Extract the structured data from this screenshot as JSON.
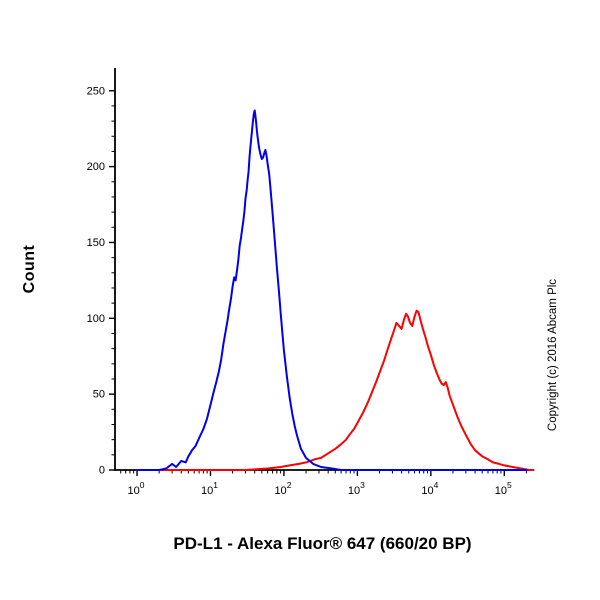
{
  "figure": {
    "title": "PD-L1 - Alexa Fluor® 647 (660/20 BP)",
    "ylabel": "Count",
    "copyright": "Copyright (c) 2016 Abcam Plc"
  },
  "chart_data": {
    "type": "line",
    "subtype": "flow-cytometry-histogram",
    "title": "PD-L1 - Alexa Fluor® 647 (660/20 BP)",
    "xlabel": "PD-L1 - Alexa Fluor® 647 (660/20 BP)",
    "ylabel": "Count",
    "xscale": "log",
    "xlog_range": [
      -0.3,
      5.35
    ],
    "xtick_exponents": [
      0,
      1,
      2,
      3,
      4,
      5
    ],
    "ylim": [
      0,
      265
    ],
    "yticks": [
      0,
      50,
      100,
      150,
      200,
      250
    ],
    "grid": false,
    "legend": "none",
    "axis_color": "#000000",
    "background_color": "#ffffff",
    "series": [
      {
        "name": "series-red-pd-l1-stained",
        "color": "#ff0000",
        "peak": {
          "x": 6400,
          "y": 105
        },
        "points": [
          [
            1,
            0
          ],
          [
            30,
            0
          ],
          [
            60,
            1
          ],
          [
            90,
            2
          ],
          [
            120,
            3
          ],
          [
            160,
            4
          ],
          [
            200,
            5
          ],
          [
            260,
            7
          ],
          [
            320,
            8
          ],
          [
            400,
            11
          ],
          [
            500,
            14
          ],
          [
            600,
            17
          ],
          [
            700,
            20
          ],
          [
            800,
            24
          ],
          [
            900,
            27
          ],
          [
            1000,
            31
          ],
          [
            1200,
            38
          ],
          [
            1400,
            45
          ],
          [
            1600,
            52
          ],
          [
            1800,
            58
          ],
          [
            2000,
            64
          ],
          [
            2300,
            72
          ],
          [
            2600,
            80
          ],
          [
            2900,
            87
          ],
          [
            3100,
            91
          ],
          [
            3400,
            97
          ],
          [
            3700,
            95
          ],
          [
            4000,
            93
          ],
          [
            4300,
            99
          ],
          [
            4600,
            103
          ],
          [
            4900,
            101
          ],
          [
            5200,
            97
          ],
          [
            5600,
            95
          ],
          [
            6000,
            101
          ],
          [
            6400,
            105
          ],
          [
            6800,
            104
          ],
          [
            7200,
            99
          ],
          [
            7800,
            93
          ],
          [
            8500,
            87
          ],
          [
            9200,
            81
          ],
          [
            10000,
            76
          ],
          [
            11000,
            69
          ],
          [
            12000,
            64
          ],
          [
            13000,
            60
          ],
          [
            14000,
            57
          ],
          [
            15000,
            56
          ],
          [
            16000,
            58
          ],
          [
            17000,
            54
          ],
          [
            18000,
            49
          ],
          [
            20000,
            43
          ],
          [
            23000,
            35
          ],
          [
            26000,
            29
          ],
          [
            30000,
            23
          ],
          [
            35000,
            17
          ],
          [
            40000,
            13
          ],
          [
            50000,
            9
          ],
          [
            60000,
            7
          ],
          [
            70000,
            5
          ],
          [
            85000,
            4
          ],
          [
            100000,
            3
          ],
          [
            130000,
            2
          ],
          [
            170000,
            1
          ],
          [
            220000,
            0
          ],
          [
            250000,
            0
          ]
        ]
      },
      {
        "name": "series-blue-control",
        "color": "#0000ee",
        "peak": {
          "x": 40,
          "y": 237
        },
        "points": [
          [
            1,
            0
          ],
          [
            2,
            0
          ],
          [
            2.5,
            1
          ],
          [
            3,
            4
          ],
          [
            3.4,
            2
          ],
          [
            4,
            6
          ],
          [
            4.6,
            5
          ],
          [
            5,
            9
          ],
          [
            5.6,
            13
          ],
          [
            6.3,
            16
          ],
          [
            7,
            21
          ],
          [
            8,
            27
          ],
          [
            9,
            34
          ],
          [
            10,
            43
          ],
          [
            11,
            51
          ],
          [
            12,
            58
          ],
          [
            13,
            65
          ],
          [
            14,
            73
          ],
          [
            15,
            83
          ],
          [
            16,
            91
          ],
          [
            17,
            98
          ],
          [
            18,
            106
          ],
          [
            19,
            113
          ],
          [
            20,
            121
          ],
          [
            21,
            127
          ],
          [
            22,
            125
          ],
          [
            23,
            132
          ],
          [
            24,
            139
          ],
          [
            25,
            148
          ],
          [
            26,
            153
          ],
          [
            27,
            159
          ],
          [
            28,
            164
          ],
          [
            29,
            171
          ],
          [
            30,
            179
          ],
          [
            31,
            184
          ],
          [
            32,
            191
          ],
          [
            33,
            197
          ],
          [
            34,
            206
          ],
          [
            35,
            213
          ],
          [
            36,
            219
          ],
          [
            37,
            225
          ],
          [
            38,
            231
          ],
          [
            39,
            235
          ],
          [
            40,
            237
          ],
          [
            41,
            233
          ],
          [
            42,
            228
          ],
          [
            43,
            223
          ],
          [
            44,
            219
          ],
          [
            45,
            215
          ],
          [
            46,
            212
          ],
          [
            48,
            208
          ],
          [
            50,
            205
          ],
          [
            52,
            206
          ],
          [
            54,
            209
          ],
          [
            56,
            211
          ],
          [
            58,
            207
          ],
          [
            60,
            202
          ],
          [
            63,
            195
          ],
          [
            66,
            184
          ],
          [
            70,
            169
          ],
          [
            75,
            151
          ],
          [
            80,
            134
          ],
          [
            85,
            119
          ],
          [
            90,
            104
          ],
          [
            95,
            91
          ],
          [
            100,
            79
          ],
          [
            110,
            61
          ],
          [
            120,
            47
          ],
          [
            130,
            37
          ],
          [
            140,
            29
          ],
          [
            150,
            23
          ],
          [
            170,
            14
          ],
          [
            200,
            8
          ],
          [
            250,
            4
          ],
          [
            320,
            2
          ],
          [
            450,
            1
          ],
          [
            600,
            0
          ],
          [
            5000,
            0
          ],
          [
            50000,
            0
          ],
          [
            200000,
            0
          ]
        ]
      }
    ]
  }
}
